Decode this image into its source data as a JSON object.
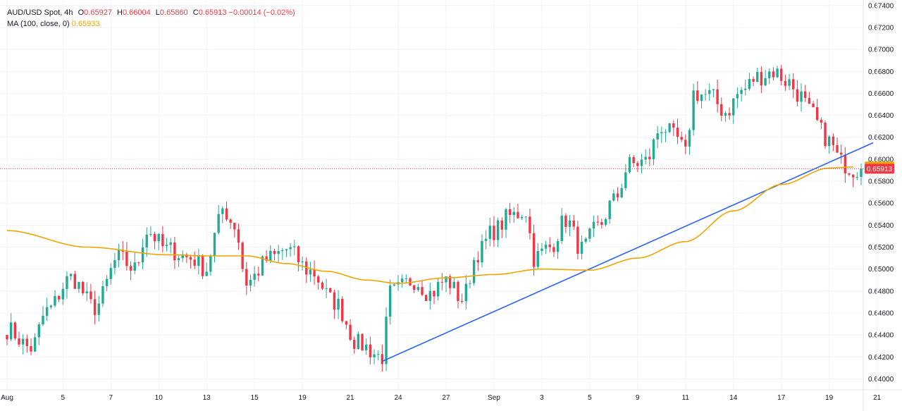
{
  "legend": {
    "symbol": "AUD/USD Spot, 4h",
    "open_label": "O",
    "open": "0.65927",
    "high_label": "H",
    "high": "0.66004",
    "low_label": "L",
    "low": "0.65860",
    "close_label": "C",
    "close": "0.65913",
    "change": "−0.00014 (−0.02%)",
    "ma_label": "MA (100, close, 0)",
    "ma_value": "0.65933"
  },
  "colors": {
    "up": "#22ab94",
    "down": "#f23645",
    "ma": "#f0a500",
    "trendline": "#2962ff",
    "grid": "#f0f3fa",
    "price_line": "#f23645"
  },
  "chart_data": {
    "type": "candlestick",
    "title": "AUD/USD Spot, 4h",
    "ylim": [
      0.639,
      0.6745
    ],
    "y_ticks": [
      "0.67400",
      "0.67200",
      "0.67000",
      "0.66800",
      "0.66600",
      "0.66400",
      "0.66200",
      "0.66000",
      "0.65800",
      "0.65600",
      "0.65400",
      "0.65200",
      "0.65000",
      "0.64800",
      "0.64600",
      "0.64400",
      "0.64200",
      "0.64000"
    ],
    "x_ticks": [
      "Aug",
      "5",
      "7",
      "10",
      "13",
      "15",
      "19",
      "21",
      "24",
      "27",
      "Sep",
      "3",
      "5",
      "9",
      "11",
      "14",
      "17",
      "19",
      "21"
    ],
    "x_tick_positions": [
      0,
      14,
      26,
      38,
      50,
      62,
      74,
      86,
      98,
      110,
      122,
      134,
      146,
      158,
      170,
      182,
      194,
      206,
      218
    ],
    "candle_count": 215,
    "ohlc_anchors": [
      [
        0,
        0.6445
      ],
      [
        6,
        0.6428
      ],
      [
        10,
        0.6462
      ],
      [
        16,
        0.6492
      ],
      [
        22,
        0.6465
      ],
      [
        28,
        0.651
      ],
      [
        32,
        0.65
      ],
      [
        35,
        0.6535
      ],
      [
        40,
        0.6518
      ],
      [
        46,
        0.651
      ],
      [
        50,
        0.65
      ],
      [
        52,
        0.653
      ],
      [
        54,
        0.6555
      ],
      [
        57,
        0.654
      ],
      [
        60,
        0.6488
      ],
      [
        66,
        0.651
      ],
      [
        70,
        0.6518
      ],
      [
        76,
        0.6498
      ],
      [
        82,
        0.647
      ],
      [
        88,
        0.6432
      ],
      [
        94,
        0.642
      ],
      [
        96,
        0.6478
      ],
      [
        102,
        0.649
      ],
      [
        106,
        0.6478
      ],
      [
        110,
        0.649
      ],
      [
        114,
        0.6473
      ],
      [
        118,
        0.6515
      ],
      [
        122,
        0.6535
      ],
      [
        126,
        0.6548
      ],
      [
        130,
        0.6553
      ],
      [
        132,
        0.651
      ],
      [
        136,
        0.652
      ],
      [
        140,
        0.6545
      ],
      [
        144,
        0.6518
      ],
      [
        148,
        0.6538
      ],
      [
        152,
        0.6562
      ],
      [
        156,
        0.6595
      ],
      [
        160,
        0.6598
      ],
      [
        164,
        0.663
      ],
      [
        168,
        0.6618
      ],
      [
        170,
        0.6604
      ],
      [
        172,
        0.666
      ],
      [
        176,
        0.6658
      ],
      [
        180,
        0.6643
      ],
      [
        184,
        0.6662
      ],
      [
        188,
        0.6675
      ],
      [
        192,
        0.668
      ],
      [
        196,
        0.667
      ],
      [
        198,
        0.666
      ],
      [
        202,
        0.664
      ],
      [
        204,
        0.6625
      ],
      [
        206,
        0.6616
      ],
      [
        209,
        0.6597
      ],
      [
        212,
        0.6591
      ]
    ],
    "ma": {
      "name": "MA (100, close, 0)",
      "points": [
        [
          0,
          0.6535
        ],
        [
          20,
          0.652
        ],
        [
          40,
          0.6513
        ],
        [
          50,
          0.6512
        ],
        [
          60,
          0.6512
        ],
        [
          70,
          0.6505
        ],
        [
          80,
          0.6498
        ],
        [
          90,
          0.649
        ],
        [
          98,
          0.6487
        ],
        [
          110,
          0.6492
        ],
        [
          122,
          0.6495
        ],
        [
          134,
          0.65
        ],
        [
          146,
          0.6499
        ],
        [
          158,
          0.651
        ],
        [
          170,
          0.6525
        ],
        [
          182,
          0.6553
        ],
        [
          194,
          0.6577
        ],
        [
          206,
          0.6592
        ],
        [
          212,
          0.6593
        ]
      ]
    },
    "trendline": [
      [
        94,
        0.6416
      ],
      [
        217,
        0.6615
      ]
    ],
    "last_price": "0.65913",
    "ma_last": "0.65933"
  }
}
